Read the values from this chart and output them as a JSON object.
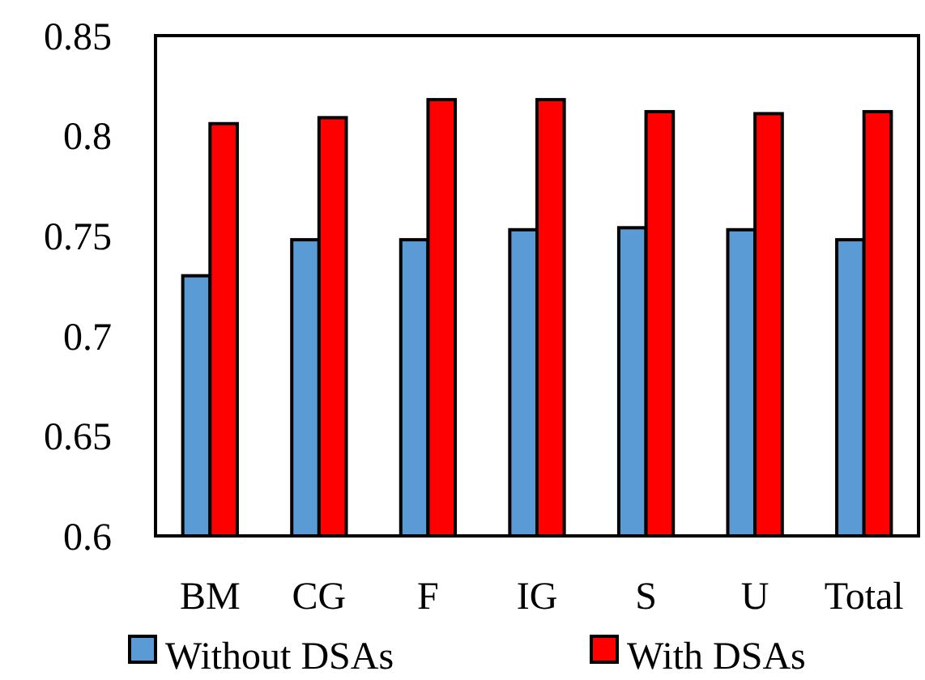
{
  "chart_data": {
    "type": "bar",
    "categories": [
      "BM",
      "CG",
      "F",
      "IG",
      "S",
      "U",
      "Total"
    ],
    "series": [
      {
        "name": "Without DSAs",
        "color": "#5b9bd5",
        "values": [
          0.73,
          0.748,
          0.748,
          0.753,
          0.754,
          0.753,
          0.748
        ]
      },
      {
        "name": "With DSAs",
        "color": "#ff0000",
        "values": [
          0.806,
          0.809,
          0.818,
          0.818,
          0.812,
          0.811,
          0.812
        ]
      }
    ],
    "ylim": [
      0.6,
      0.85
    ],
    "yticks": [
      0.6,
      0.65,
      0.7,
      0.75,
      0.8,
      0.85
    ],
    "grid": false,
    "legend": "bottom"
  }
}
